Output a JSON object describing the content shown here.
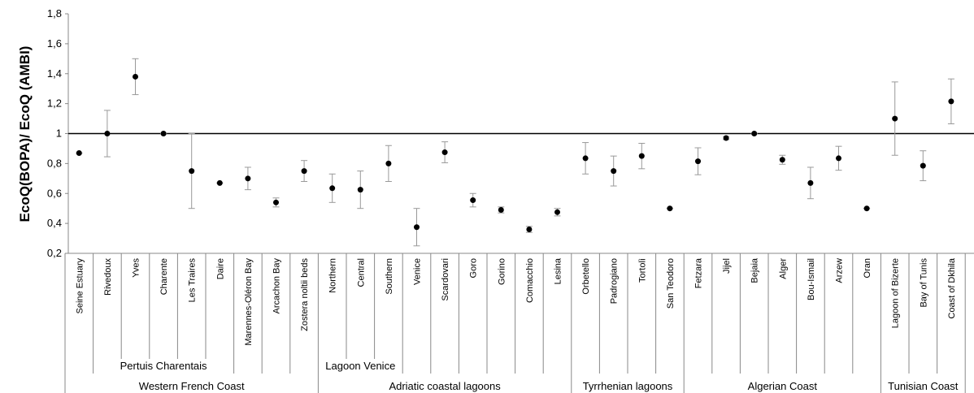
{
  "chart_data": {
    "type": "scatter",
    "y_label": "EcoQ(BOPA)/ EcoQ (AMBI)",
    "categories": [
      "Seine Estuary",
      "Rivedoux",
      "Yves",
      "Charente",
      "Les Traires",
      "Daire",
      "Marennes-Oléron Bay",
      "Arcachon Bay",
      "Zostera noltii beds",
      "Northern",
      "Central",
      "Southern",
      "Venice",
      "Scardovari",
      "Goro",
      "Gorino",
      "Comacchio",
      "Lesina",
      "Orbetello",
      "Padrogiano",
      "Tortolì",
      "San Teodoro",
      "Fetzara",
      "Jijel",
      "Bejaia",
      "Alger",
      "Bou-Ismail",
      "Arzew",
      "Oran",
      "Lagoon of Bizerte",
      "Bay of Tunis",
      "Coast of Dkhila"
    ],
    "values": [
      0.87,
      1.0,
      1.38,
      1.0,
      0.75,
      0.67,
      0.7,
      0.54,
      0.75,
      0.635,
      0.625,
      0.8,
      0.375,
      0.875,
      0.555,
      0.49,
      0.36,
      0.475,
      0.835,
      0.75,
      0.85,
      0.5,
      0.815,
      0.97,
      1.0,
      0.825,
      0.67,
      0.835,
      0.5,
      1.1,
      0.785,
      1.215
    ],
    "errors": [
      0,
      0.155,
      0.12,
      0,
      0.25,
      0,
      0.075,
      0.03,
      0.07,
      0.095,
      0.125,
      0.12,
      0.125,
      0.07,
      0.045,
      0.02,
      0.02,
      0.025,
      0.105,
      0.1,
      0.085,
      0,
      0.09,
      0.01,
      0,
      0.03,
      0.105,
      0.08,
      0,
      0.245,
      0.1,
      0.15
    ],
    "subgroups": [
      {
        "name": "Pertuis Charentais",
        "first": 1,
        "last": 5
      },
      {
        "name": "Lagoon Venice",
        "first": 9,
        "last": 11
      }
    ],
    "groups": [
      {
        "name": "Western French Coast",
        "first": 0,
        "last": 8
      },
      {
        "name": "Adriatic coastal lagoons",
        "first": 9,
        "last": 17
      },
      {
        "name": "Tyrrhenian lagoons",
        "first": 18,
        "last": 21
      },
      {
        "name": "Algerian Coast",
        "first": 22,
        "last": 28
      },
      {
        "name": "Tunisian Coast",
        "first": 29,
        "last": 31
      }
    ],
    "color": "#000000",
    "error_color": "#999999",
    "reference_line": 1,
    "ylim": [
      0.2,
      1.8
    ],
    "yticks": [
      {
        "value": 0.2,
        "label": "0,2"
      },
      {
        "value": 0.4,
        "label": "0,4"
      },
      {
        "value": 0.6,
        "label": "0,6"
      },
      {
        "value": 0.8,
        "label": "0,8"
      },
      1,
      {
        "value": 1.2,
        "label": "1,2"
      },
      {
        "value": 1.4,
        "label": "1,4"
      },
      {
        "value": 1.6,
        "label": "1,6"
      },
      {
        "value": 1.8,
        "label": "1,8"
      }
    ],
    "grid": false
  }
}
